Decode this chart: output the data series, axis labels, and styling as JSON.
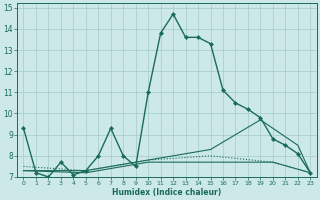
{
  "xlabel": "Humidex (Indice chaleur)",
  "background_color": "#cce8e8",
  "grid_color": "#aacece",
  "line_color": "#1a6b5a",
  "xlim": [
    -0.5,
    23.5
  ],
  "ylim": [
    7,
    15.2
  ],
  "yticks": [
    7,
    8,
    9,
    10,
    11,
    12,
    13,
    14,
    15
  ],
  "xticks": [
    0,
    1,
    2,
    3,
    4,
    5,
    6,
    7,
    8,
    9,
    10,
    11,
    12,
    13,
    14,
    15,
    16,
    17,
    18,
    19,
    20,
    21,
    22,
    23
  ],
  "series": [
    {
      "x": [
        0,
        1,
        2,
        3,
        4,
        5,
        6,
        7,
        8,
        9,
        10,
        11,
        12,
        13,
        14,
        15,
        16,
        17,
        18,
        19,
        20,
        21,
        22,
        23
      ],
      "y": [
        9.3,
        7.2,
        7.0,
        7.7,
        7.1,
        7.3,
        8.0,
        9.3,
        8.0,
        7.5,
        11.0,
        13.8,
        14.7,
        13.6,
        13.6,
        13.3,
        11.1,
        10.5,
        10.2,
        9.8,
        8.8,
        8.5,
        8.1,
        7.2
      ],
      "style": "solid",
      "marker": "D",
      "markersize": 2.0,
      "linewidth": 1.0
    },
    {
      "x": [
        0,
        5,
        10,
        15,
        19,
        22,
        23
      ],
      "y": [
        7.3,
        7.3,
        7.8,
        8.3,
        9.7,
        8.5,
        7.2
      ],
      "style": "solid",
      "marker": null,
      "markersize": 0,
      "linewidth": 0.8
    },
    {
      "x": [
        0,
        5,
        10,
        15,
        20,
        23
      ],
      "y": [
        7.3,
        7.2,
        7.7,
        7.7,
        7.7,
        7.2
      ],
      "style": "solid",
      "marker": null,
      "markersize": 0,
      "linewidth": 0.8
    },
    {
      "x": [
        0,
        5,
        10,
        15,
        20,
        23
      ],
      "y": [
        7.5,
        7.3,
        7.8,
        8.0,
        7.7,
        7.2
      ],
      "style": "dotted",
      "marker": null,
      "markersize": 0,
      "linewidth": 0.8
    }
  ]
}
